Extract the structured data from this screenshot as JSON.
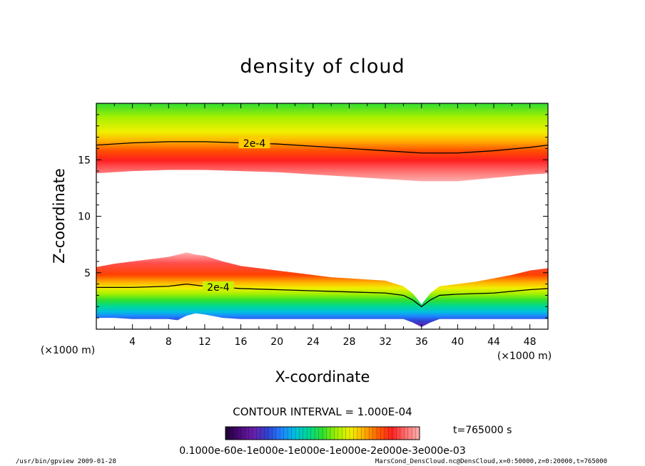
{
  "chart_data": {
    "type": "heatmap",
    "title": "density of cloud",
    "xlabel": "X-coordinate",
    "ylabel": "Z-coordinate",
    "x_unit": "(×1000 m)",
    "y_unit": "(×1000 m)",
    "xlim": [
      0,
      50
    ],
    "ylim": [
      0,
      20
    ],
    "x_ticks": [
      4,
      8,
      12,
      16,
      20,
      24,
      28,
      32,
      36,
      40,
      44,
      48
    ],
    "y_ticks": [
      5,
      10,
      15
    ],
    "upper_layer": {
      "x": [
        0,
        4,
        8,
        12,
        16,
        20,
        24,
        28,
        32,
        36,
        40,
        44,
        48,
        50
      ],
      "bottom": [
        13.8,
        14.0,
        14.1,
        14.1,
        14.0,
        13.9,
        13.7,
        13.5,
        13.3,
        13.1,
        13.1,
        13.4,
        13.7,
        13.8
      ],
      "peak": [
        15.2,
        15.4,
        15.5,
        15.5,
        15.4,
        15.3,
        15.1,
        14.9,
        14.6,
        14.3,
        14.3,
        14.6,
        15.0,
        15.2
      ]
    },
    "lower_layer": {
      "x": [
        0,
        2,
        4,
        6,
        8,
        9,
        10,
        11,
        12,
        14,
        16,
        18,
        20,
        22,
        24,
        26,
        28,
        30,
        32,
        34,
        35,
        36,
        37,
        38,
        40,
        42,
        44,
        46,
        48,
        50
      ],
      "top": [
        5.5,
        5.8,
        6.0,
        6.2,
        6.4,
        6.6,
        6.8,
        6.6,
        6.5,
        6.0,
        5.6,
        5.4,
        5.2,
        5.0,
        4.8,
        4.6,
        4.5,
        4.4,
        4.3,
        3.8,
        3.2,
        2.2,
        3.2,
        3.8,
        4.0,
        4.2,
        4.5,
        4.8,
        5.2,
        5.4
      ],
      "base": [
        1.0,
        1.0,
        0.9,
        0.9,
        0.9,
        0.8,
        1.2,
        1.4,
        1.3,
        1.0,
        0.9,
        0.9,
        0.9,
        0.9,
        0.9,
        0.9,
        0.9,
        0.9,
        0.9,
        0.9,
        0.6,
        0.2,
        0.6,
        0.9,
        0.9,
        0.9,
        0.9,
        0.9,
        0.9,
        0.9
      ]
    },
    "contours": [
      {
        "label": "2e-4",
        "x": [
          0,
          4,
          8,
          12,
          16,
          20,
          24,
          28,
          32,
          36,
          40,
          44,
          48,
          50
        ],
        "y": [
          16.3,
          16.5,
          16.6,
          16.6,
          16.5,
          16.4,
          16.2,
          16.0,
          15.8,
          15.6,
          15.6,
          15.8,
          16.1,
          16.3
        ]
      },
      {
        "label": "2e-4",
        "x": [
          0,
          4,
          8,
          10,
          12,
          16,
          20,
          24,
          28,
          32,
          34,
          35,
          36,
          37,
          38,
          40,
          44,
          48,
          50
        ],
        "y": [
          3.7,
          3.7,
          3.8,
          4.0,
          3.8,
          3.6,
          3.5,
          3.4,
          3.3,
          3.2,
          3.0,
          2.6,
          2.0,
          2.6,
          3.0,
          3.1,
          3.2,
          3.5,
          3.6
        ]
      }
    ],
    "contour_interval": "CONTOUR INTERVAL = 1.000E-04",
    "time_label": "t=765000 s",
    "colorbar_labels": "0.1000e-60e-1e000e-1e000e-1e000e-2e000e-3e000e-03",
    "colorbar_colors": [
      "#1e0032",
      "#4a0a78",
      "#6a1fa8",
      "#3040d0",
      "#2080ff",
      "#00c0e0",
      "#00d890",
      "#30e030",
      "#a0f000",
      "#f0f000",
      "#ffb000",
      "#ff6000",
      "#ff2020",
      "#ff7070",
      "#ffb0b0"
    ]
  },
  "footer": {
    "left": "/usr/bin/gpview   2009-01-28",
    "right": "MarsCond_DensCloud.nc@DensCloud,x=0:50000,z=0:20000,t=765000"
  }
}
